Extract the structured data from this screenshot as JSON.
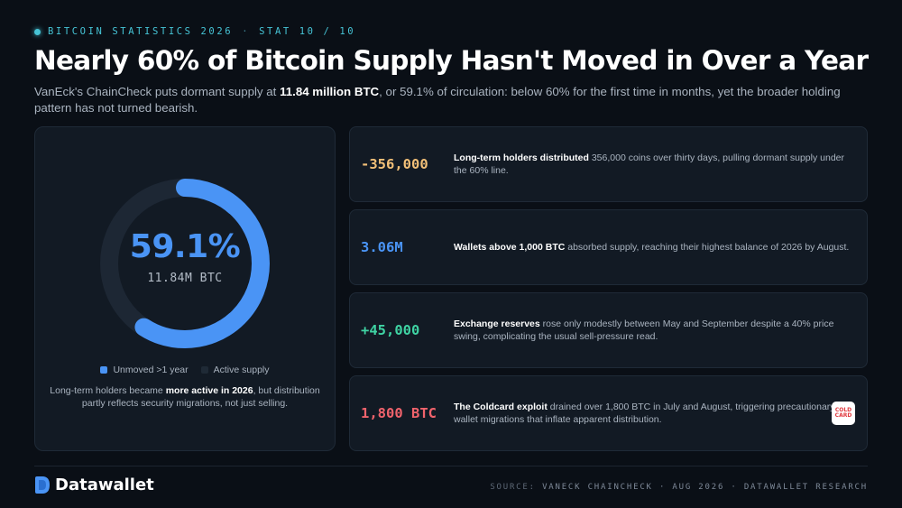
{
  "header": {
    "kicker_series": "BITCOIN STATISTICS 2026",
    "kicker_sep": "·",
    "kicker_stat": "STAT 10 / 10",
    "title": "Nearly 60% of Bitcoin Supply Hasn't Moved in Over a Year",
    "subtitle_pre": "VanEck's ChainCheck puts dormant supply at ",
    "subtitle_bold": "11.84 million BTC",
    "subtitle_post": ", or 59.1% of circulation: below 60% for the first time in months, yet the broader holding pattern has not turned bearish."
  },
  "donut": {
    "percent_label": "59.1%",
    "sub_label": "11.84M BTC",
    "fraction": 0.591,
    "colors": {
      "unmoved": "#4a94f5",
      "active": "#1d2734"
    },
    "legend": [
      {
        "label": "Unmoved >1 year",
        "color": "#4a94f5"
      },
      {
        "label": "Active supply",
        "color": "#1f2a36"
      }
    ],
    "caption_pre": "Long-term holders became ",
    "caption_bold": "more active in 2026",
    "caption_post": ", but distribution partly reflects security migrations, not just selling."
  },
  "stats": [
    {
      "value": "-356,000",
      "color": "#f2c078",
      "desc_bold": "Long-term holders distributed",
      "desc_rest": " 356,000 coins over thirty days, pulling dormant supply under the 60% line."
    },
    {
      "value": "3.06M",
      "color": "#4a94f5",
      "desc_bold": "Wallets above 1,000 BTC",
      "desc_rest": " absorbed supply, reaching their highest balance of 2026 by August."
    },
    {
      "value": "+45,000",
      "color": "#3fd3a3",
      "desc_bold": "Exchange reserves",
      "desc_rest": " rose only modestly between May and September despite a 40% price swing, complicating the usual sell-pressure read."
    },
    {
      "value": "1,800 BTC",
      "color": "#f0636c",
      "desc_bold": "The Coldcard exploit",
      "desc_rest": " drained over 1,800 BTC in July and August, triggering precautionary wallet migrations that inflate apparent distribution.",
      "logo_line1": "COLD",
      "logo_line2": "CARD",
      "logo_icon": "coldcard-logo"
    }
  ],
  "footer": {
    "brand": "Datawallet",
    "brand_icon": "datawallet-logo",
    "source_label": "SOURCE:",
    "source_text": "VANECK CHAINCHECK · AUG 2026 · DATAWALLET RESEARCH"
  }
}
